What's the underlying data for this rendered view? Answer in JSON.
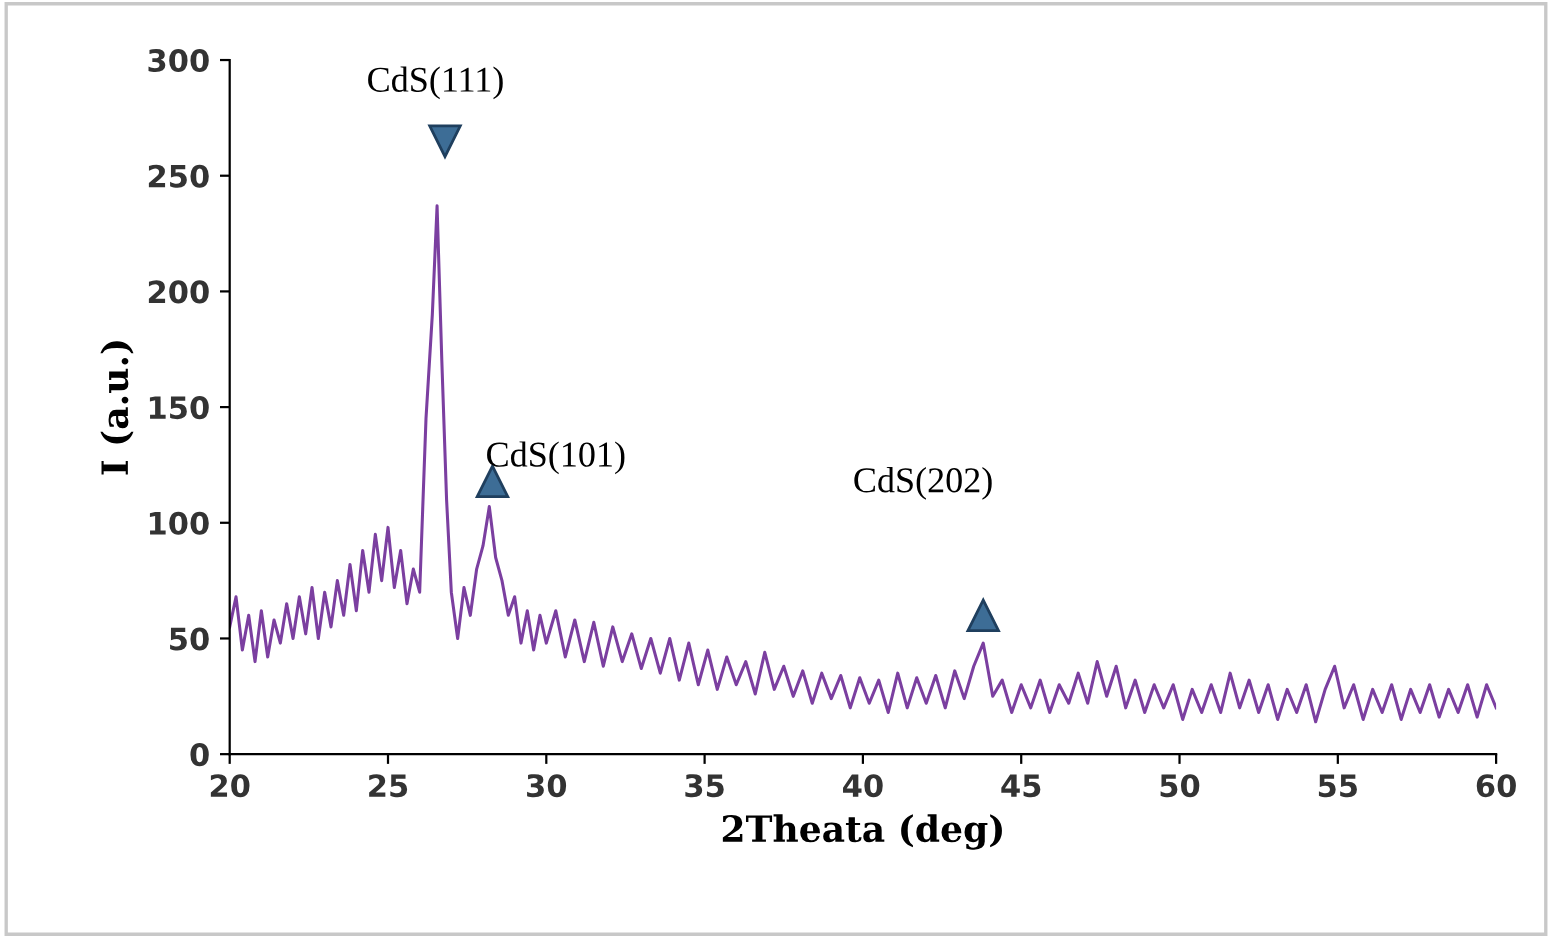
{
  "chart_data": {
    "type": "line",
    "xlabel": "2Theata (deg)",
    "ylabel": "I (a.u.)",
    "xlim": [
      20,
      60
    ],
    "xticks": [
      20,
      25,
      30,
      35,
      40,
      45,
      50,
      55,
      60
    ],
    "ylim": [
      0,
      300
    ],
    "yticks": [
      0,
      50,
      100,
      150,
      200,
      250,
      300
    ],
    "grid": false,
    "legend": false,
    "marker": "none",
    "line_style": "solid",
    "annotations": [
      "CdS(111)",
      "CdS(101)",
      "CdS(202)"
    ],
    "series": [
      {
        "color": "#7b3fa0",
        "x": [
          20.0,
          20.2,
          20.4,
          20.6,
          20.8,
          21.0,
          21.2,
          21.4,
          21.6,
          21.8,
          22.0,
          22.2,
          22.4,
          22.6,
          22.8,
          23.0,
          23.2,
          23.4,
          23.6,
          23.8,
          24.0,
          24.2,
          24.4,
          24.6,
          24.8,
          25.0,
          25.2,
          25.4,
          25.6,
          25.8,
          26.0,
          26.2,
          26.4,
          26.55,
          26.7,
          26.85,
          27.0,
          27.2,
          27.4,
          27.6,
          27.8,
          28.0,
          28.2,
          28.4,
          28.6,
          28.8,
          29.0,
          29.2,
          29.4,
          29.6,
          29.8,
          30.0,
          30.3,
          30.6,
          30.9,
          31.2,
          31.5,
          31.8,
          32.1,
          32.4,
          32.7,
          33.0,
          33.3,
          33.6,
          33.9,
          34.2,
          34.5,
          34.8,
          35.1,
          35.4,
          35.7,
          36.0,
          36.3,
          36.6,
          36.9,
          37.2,
          37.5,
          37.8,
          38.1,
          38.4,
          38.7,
          39.0,
          39.3,
          39.6,
          39.9,
          40.2,
          40.5,
          40.8,
          41.1,
          41.4,
          41.7,
          42.0,
          42.3,
          42.6,
          42.9,
          43.2,
          43.5,
          43.8,
          44.1,
          44.4,
          44.7,
          45.0,
          45.3,
          45.6,
          45.9,
          46.2,
          46.5,
          46.8,
          47.1,
          47.4,
          47.7,
          48.0,
          48.3,
          48.6,
          48.9,
          49.2,
          49.5,
          49.8,
          50.1,
          50.4,
          50.7,
          51.0,
          51.3,
          51.6,
          51.9,
          52.2,
          52.5,
          52.8,
          53.1,
          53.4,
          53.7,
          54.0,
          54.3,
          54.6,
          54.9,
          55.2,
          55.5,
          55.8,
          56.1,
          56.4,
          56.7,
          57.0,
          57.3,
          57.6,
          57.9,
          58.2,
          58.5,
          58.8,
          59.1,
          59.4,
          59.7,
          60.0
        ],
        "values": [
          55,
          68,
          45,
          60,
          40,
          62,
          42,
          58,
          48,
          65,
          50,
          68,
          52,
          72,
          50,
          70,
          55,
          75,
          60,
          82,
          62,
          88,
          70,
          95,
          75,
          98,
          72,
          88,
          65,
          80,
          70,
          145,
          190,
          237,
          170,
          110,
          70,
          50,
          72,
          60,
          80,
          90,
          107,
          85,
          75,
          60,
          68,
          48,
          62,
          45,
          60,
          48,
          62,
          42,
          58,
          40,
          57,
          38,
          55,
          40,
          52,
          37,
          50,
          35,
          50,
          32,
          48,
          30,
          45,
          28,
          42,
          30,
          40,
          26,
          44,
          28,
          38,
          25,
          36,
          22,
          35,
          24,
          34,
          20,
          33,
          22,
          32,
          18,
          35,
          20,
          33,
          22,
          34,
          20,
          36,
          24,
          38,
          48,
          25,
          32,
          18,
          30,
          20,
          32,
          18,
          30,
          22,
          35,
          22,
          40,
          25,
          38,
          20,
          32,
          18,
          30,
          20,
          30,
          15,
          28,
          18,
          30,
          18,
          35,
          20,
          32,
          18,
          30,
          15,
          28,
          18,
          30,
          14,
          28,
          38,
          20,
          30,
          15,
          28,
          18,
          30,
          15,
          28,
          18,
          30,
          16,
          28,
          18,
          30,
          16,
          30,
          20
        ]
      }
    ]
  }
}
